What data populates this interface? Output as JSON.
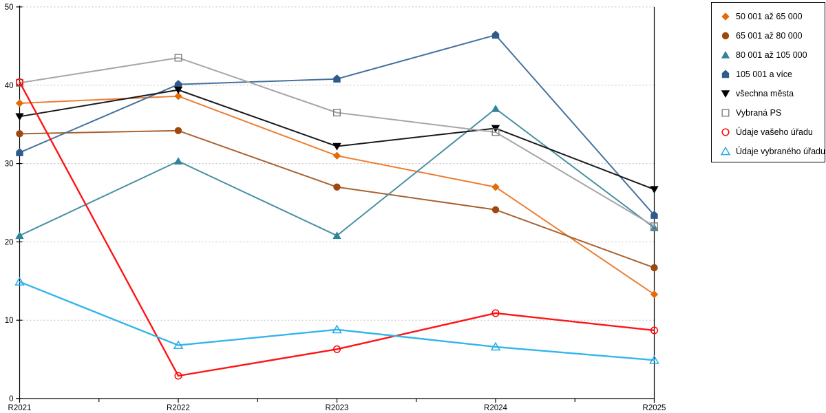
{
  "chart_data": {
    "type": "line",
    "title": "",
    "xlabel": "",
    "ylabel": "",
    "x_categories": [
      "R2021",
      "R2022",
      "R2023",
      "R2024",
      "R2025"
    ],
    "y_ticks": [
      0,
      10,
      20,
      30,
      40,
      50
    ],
    "ylim": [
      0,
      50
    ],
    "grid": "horizontal-dotted",
    "legend_position": "right-outside",
    "series": [
      {
        "name": "50 001 až 65 000",
        "marker": "diamond",
        "color": "#E36C09",
        "line_color": "#ED7D31",
        "values": [
          37.7,
          38.6,
          31.0,
          27.0,
          13.3
        ]
      },
      {
        "name": "65 001 až 80 000",
        "marker": "circle",
        "color": "#9E480E",
        "line_color": "#A9622F",
        "values": [
          33.8,
          34.2,
          27.0,
          24.1,
          16.7
        ]
      },
      {
        "name": "80 001 až 105 000",
        "marker": "triangle-up",
        "color": "#31849B",
        "line_color": "#4A90A4",
        "values": [
          20.8,
          30.3,
          20.8,
          37.0,
          21.8
        ]
      },
      {
        "name": "105 001 a více",
        "marker": "pentagon",
        "color": "#2E5B8C",
        "line_color": "#44729F",
        "values": [
          31.4,
          40.1,
          40.8,
          46.4,
          23.4
        ]
      },
      {
        "name": "všechna města",
        "marker": "triangle-down",
        "color": "#000000",
        "line_color": "#1A1A1A",
        "values": [
          36.0,
          39.4,
          32.2,
          34.5,
          26.7
        ]
      },
      {
        "name": "Vybraná PS",
        "marker": "square-open",
        "color": "#7F7F7F",
        "line_color": "#A6A6A6",
        "values": [
          40.3,
          43.5,
          36.5,
          34.0,
          22.0
        ]
      },
      {
        "name": "Údaje vašeho úřadu",
        "marker": "circle-open",
        "color": "#FF0000",
        "line_color": "#FF1414",
        "values": [
          40.4,
          2.9,
          6.3,
          10.9,
          8.7
        ]
      },
      {
        "name": "Údaje vybraného úřadu",
        "marker": "triangle-open",
        "color": "#29ABE2",
        "line_color": "#33B5EC",
        "values": [
          14.9,
          6.8,
          8.8,
          6.6,
          4.9
        ]
      }
    ]
  },
  "colors": {
    "background": "#FFFFFF",
    "gridline": "#BFBFBF",
    "axis": "#000000",
    "tick_label": "#000000",
    "legend_border": "#000000"
  }
}
